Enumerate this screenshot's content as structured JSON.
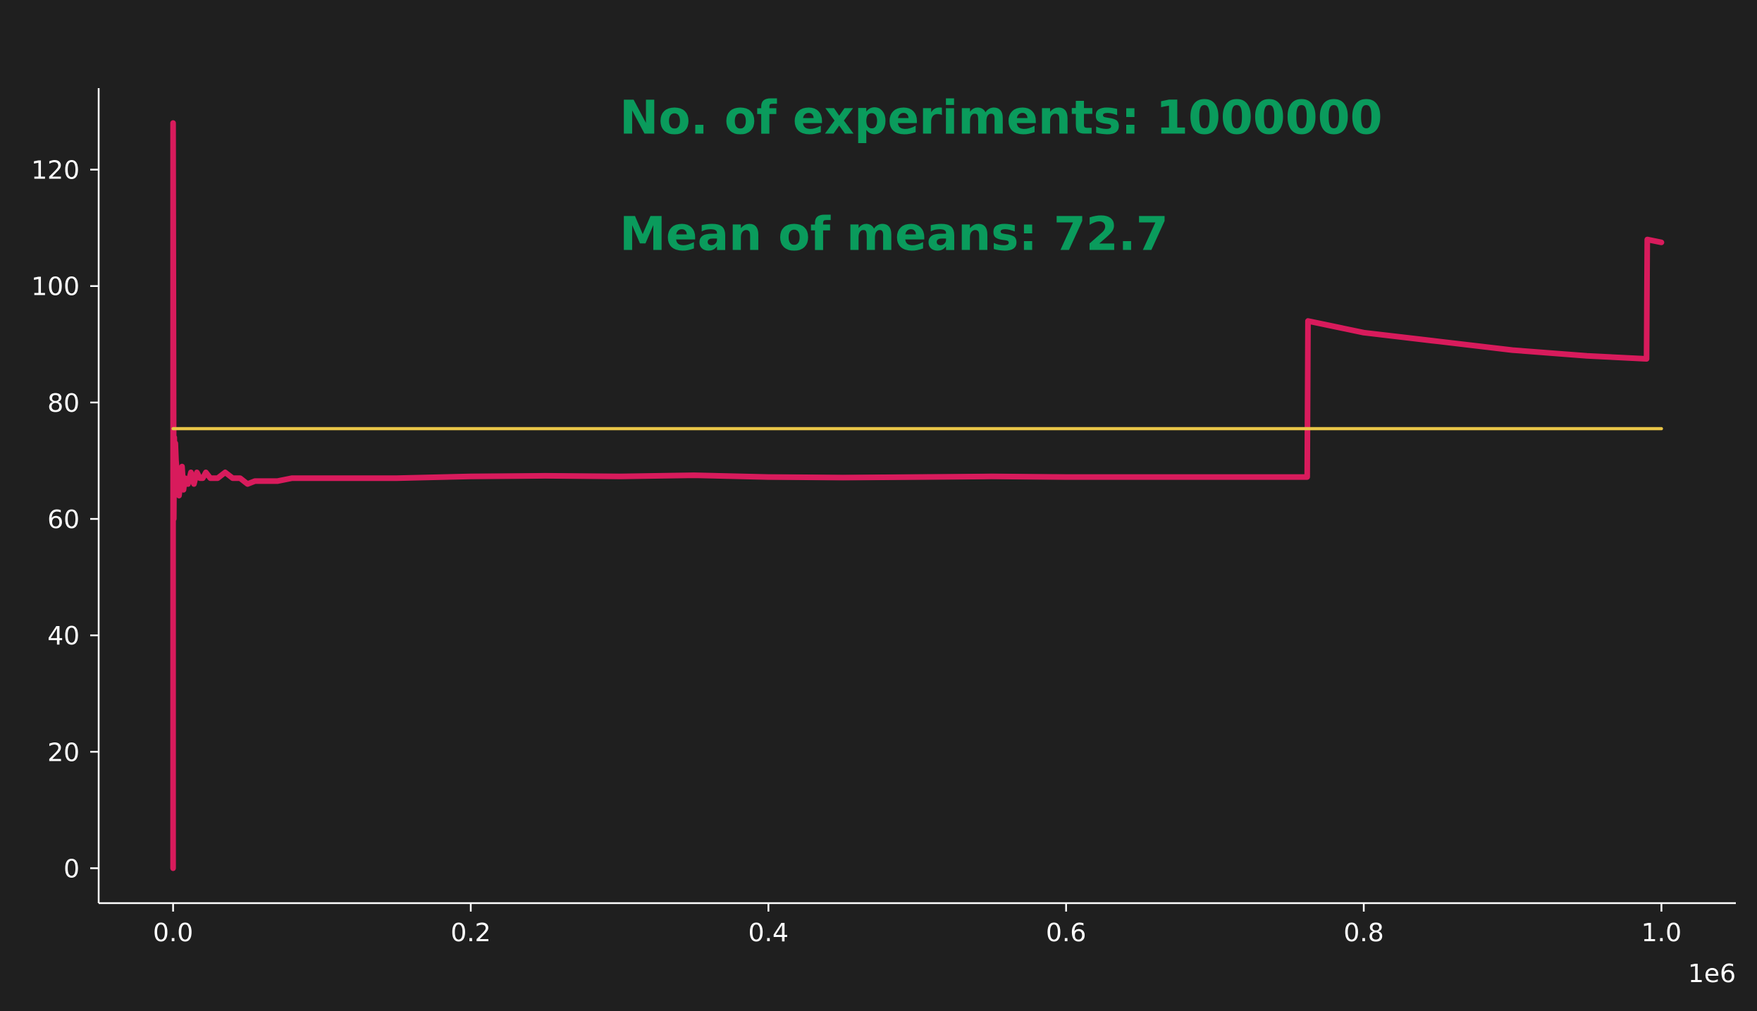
{
  "chart_data": {
    "type": "line",
    "background_color": "#1f1f1f",
    "axis_color": "#ffffff",
    "annotation_color": "#0a9b5c",
    "x_offset_label": "1e6",
    "xlim": [
      -0.05,
      1.05
    ],
    "ylim": [
      -6,
      134
    ],
    "x_ticks": [
      {
        "value": 0.0,
        "label": "0.0"
      },
      {
        "value": 0.2,
        "label": "0.2"
      },
      {
        "value": 0.4,
        "label": "0.4"
      },
      {
        "value": 0.6,
        "label": "0.6"
      },
      {
        "value": 0.8,
        "label": "0.8"
      },
      {
        "value": 1.0,
        "label": "1.0"
      }
    ],
    "y_ticks": [
      {
        "value": 0,
        "label": "0"
      },
      {
        "value": 20,
        "label": "20"
      },
      {
        "value": 40,
        "label": "40"
      },
      {
        "value": 60,
        "label": "60"
      },
      {
        "value": 80,
        "label": "80"
      },
      {
        "value": 100,
        "label": "100"
      },
      {
        "value": 120,
        "label": "120"
      }
    ],
    "annotations": [
      {
        "text": "No. of experiments: 1000000",
        "x": 0.3,
        "y": 132
      },
      {
        "text": "Mean of means: 72.7",
        "x": 0.3,
        "y": 112
      }
    ],
    "series": [
      {
        "color": "#d81b5c",
        "line_width": "thick",
        "x": [
          0.0,
          0.0,
          0.0005,
          0.0008,
          0.001,
          0.0015,
          0.002,
          0.003,
          0.004,
          0.005,
          0.006,
          0.007,
          0.008,
          0.009,
          0.01,
          0.012,
          0.014,
          0.016,
          0.018,
          0.02,
          0.022,
          0.025,
          0.03,
          0.035,
          0.04,
          0.045,
          0.05,
          0.055,
          0.06,
          0.07,
          0.08,
          0.1,
          0.15,
          0.2,
          0.25,
          0.3,
          0.35,
          0.4,
          0.45,
          0.5,
          0.55,
          0.6,
          0.65,
          0.7,
          0.74,
          0.762,
          0.7625,
          0.8,
          0.85,
          0.9,
          0.95,
          0.99,
          0.9905,
          1.0
        ],
        "y": [
          0,
          128,
          60,
          74,
          70,
          73,
          70,
          67,
          64,
          66,
          69,
          65,
          67,
          66,
          66,
          68,
          66,
          68,
          67,
          67,
          68,
          67,
          67,
          68,
          67,
          67,
          66,
          66.5,
          66.5,
          66.5,
          67,
          67,
          67,
          67.3,
          67.4,
          67.3,
          67.5,
          67.2,
          67.1,
          67.2,
          67.3,
          67.2,
          67.2,
          67.2,
          67.2,
          67.2,
          94,
          92,
          90.5,
          89,
          88,
          87.5,
          108,
          107.5
        ]
      },
      {
        "color": "#e8c547",
        "line_width": "thin",
        "x": [
          0.0,
          1.0
        ],
        "y": [
          75.5,
          75.5
        ]
      }
    ]
  }
}
